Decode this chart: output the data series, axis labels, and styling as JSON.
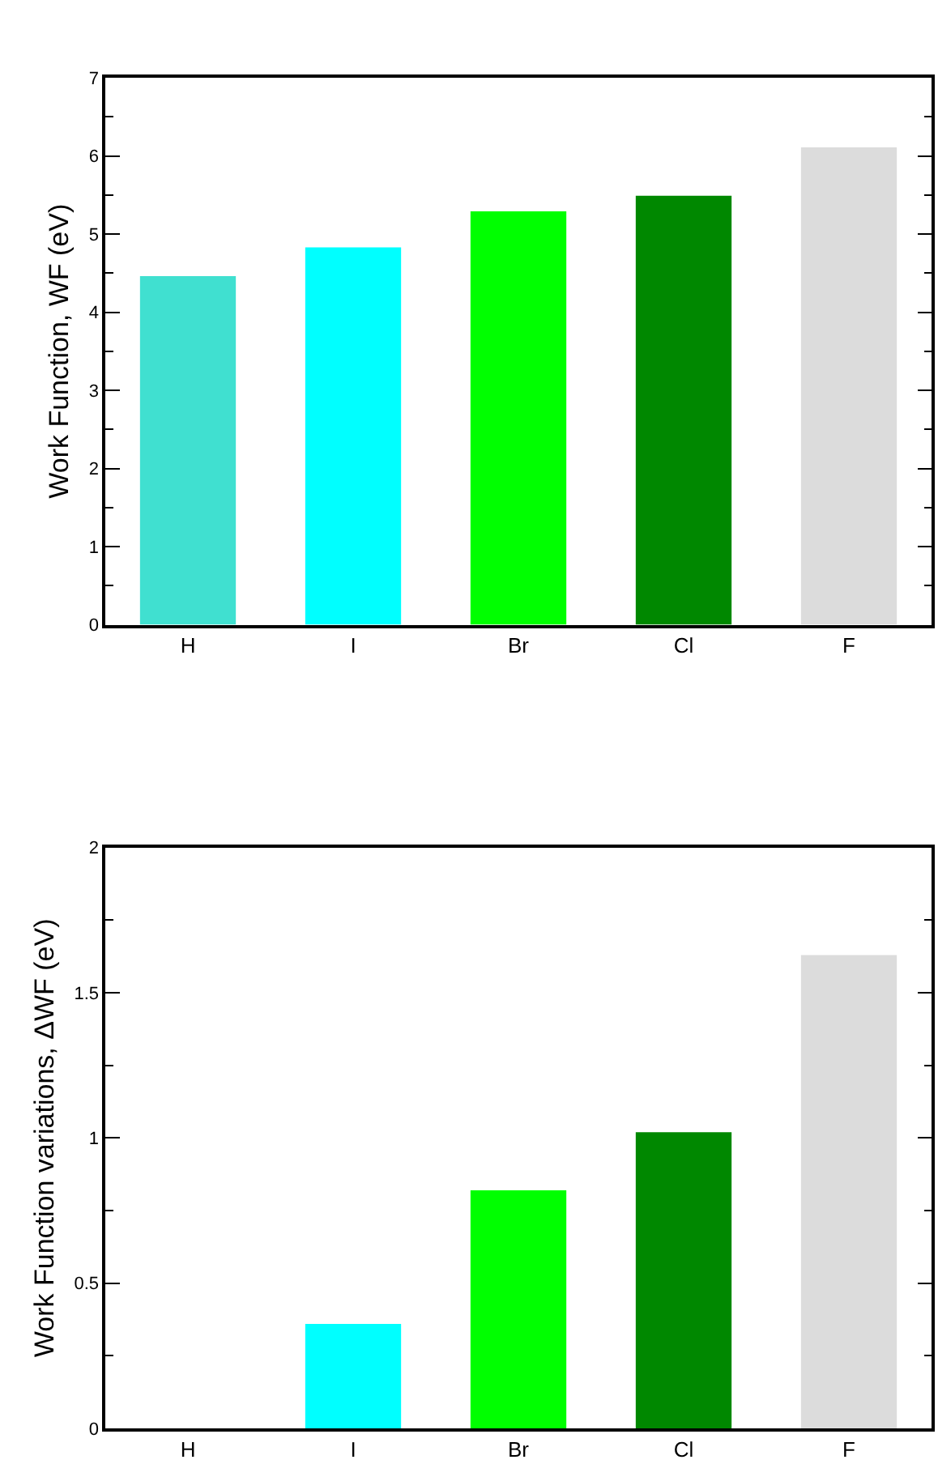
{
  "chart_data": [
    {
      "type": "bar",
      "ylabel": "Work Function, WF (eV)",
      "categories": [
        "H",
        "I",
        "Br",
        "Cl",
        "F"
      ],
      "values": [
        4.46,
        4.83,
        5.29,
        5.49,
        6.11
      ],
      "colors": [
        "#40e0d0",
        "#00ffff",
        "#00ff00",
        "#008800",
        "#dcdcdc"
      ],
      "ylim": [
        0,
        7
      ],
      "yticks": [
        0,
        {
          "value": 0.5,
          "label": null
        },
        1,
        {
          "value": 1.5,
          "label": null
        },
        2,
        {
          "value": 2.5,
          "label": null
        },
        3,
        {
          "value": 3.5,
          "label": null
        },
        4,
        {
          "value": 4.5,
          "label": null
        },
        5,
        {
          "value": 5.5,
          "label": null
        },
        6,
        {
          "value": 6.5,
          "label": null
        },
        7
      ]
    },
    {
      "type": "bar",
      "ylabel": "Work Function variations, ΔWF (eV)",
      "categories": [
        "H",
        "I",
        "Br",
        "Cl",
        "F"
      ],
      "values": [
        0,
        0.36,
        0.82,
        1.02,
        1.63
      ],
      "colors": [
        "#40e0d0",
        "#00ffff",
        "#00ff00",
        "#008800",
        "#dcdcdc"
      ],
      "ylim": [
        0,
        2
      ],
      "yticks": [
        0,
        {
          "value": 0.25,
          "label": null
        },
        0.5,
        {
          "value": 0.75,
          "label": null
        },
        1,
        {
          "value": 1.25,
          "label": null
        },
        1.5,
        {
          "value": 1.75,
          "label": null
        },
        2
      ]
    }
  ]
}
